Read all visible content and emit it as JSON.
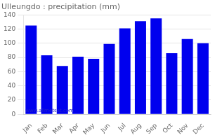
{
  "chart_data": {
    "type": "bar",
    "title": "Ulleungdo : precipitation (mm)",
    "categories": [
      "Jan",
      "Feb",
      "Mar",
      "Apr",
      "May",
      "Jun",
      "Jul",
      "Aug",
      "Sep",
      "Oct",
      "Nov",
      "Dec"
    ],
    "values": [
      125,
      83,
      68,
      81,
      78,
      99,
      121,
      131,
      135,
      86,
      106,
      100
    ],
    "color": "#0000EE",
    "ylim": [
      0,
      140
    ],
    "yticks": [
      0,
      20,
      40,
      60,
      80,
      100,
      120,
      140
    ],
    "grid": true,
    "annotations": [
      "www.allmetsat.com"
    ]
  }
}
